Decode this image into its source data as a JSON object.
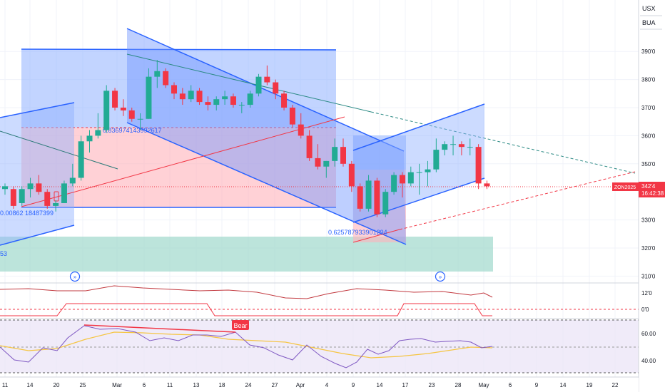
{
  "header": {
    "symbol": "USX",
    "unit": "BUA"
  },
  "last_price": {
    "symbol": "ZON2025",
    "price": "342'4",
    "countdown": "16:42:38"
  },
  "price_axis": [
    {
      "label": "390'0",
      "value": 390
    },
    {
      "label": "380'0",
      "value": 380
    },
    {
      "label": "370'0",
      "value": 370
    },
    {
      "label": "360'0",
      "value": 360
    },
    {
      "label": "350'0",
      "value": 350
    },
    {
      "label": "330'0",
      "value": 330
    },
    {
      "label": "320'0",
      "value": 320
    },
    {
      "label": "310'0",
      "value": 310
    }
  ],
  "indicator_axis": [
    "12'0",
    "0'0"
  ],
  "rsi_axis": [
    "60.00",
    "40.00"
  ],
  "time_axis": [
    "11",
    "14",
    "20",
    "25",
    "Mar",
    "6",
    "11",
    "13",
    "18",
    "24",
    "27",
    "Apr",
    "4",
    "9",
    "14",
    "17",
    "23",
    "28",
    "May",
    "6",
    "9",
    "14",
    "19",
    "22"
  ],
  "annotations": {
    "fib_left": "0.00862",
    "fib_left_b": "18487399",
    "fib_top": "0.836974143992617",
    "fib_bottom": "0.625787933901294",
    "left_value": "53",
    "divergence": "Bear"
  },
  "colors": {
    "up": "#22ab94",
    "down": "#f23645",
    "channel": "#2962ff",
    "fill_blue": "#8fb0ff",
    "fill_red": "#ffb3ba",
    "zone": "#9fd9cc",
    "indicator": "#c2393f",
    "rsi": "#7e57c2",
    "rsi_ma": "#f5c542"
  },
  "chart_data": {
    "type": "candlestick",
    "dates": [
      "Feb 10",
      "Feb 11",
      "Feb 12",
      "Feb 13",
      "Feb 14",
      "Feb 18",
      "Feb 19",
      "Feb 20",
      "Feb 21",
      "Feb 24",
      "Feb 25",
      "Feb 26",
      "Feb 27",
      "Feb 28",
      "Mar 3",
      "Mar 4",
      "Mar 5",
      "Mar 6",
      "Mar 7",
      "Mar 10",
      "Mar 11",
      "Mar 12",
      "Mar 13",
      "Mar 14",
      "Mar 17",
      "Mar 18",
      "Mar 19",
      "Mar 20",
      "Mar 21",
      "Mar 24",
      "Mar 25",
      "Mar 26",
      "Mar 27",
      "Mar 28",
      "Mar 31",
      "Apr 1",
      "Apr 2",
      "Apr 3",
      "Apr 4",
      "Apr 7",
      "Apr 8",
      "Apr 9",
      "Apr 10",
      "Apr 11",
      "Apr 14",
      "Apr 15",
      "Apr 16",
      "Apr 17",
      "Apr 21",
      "Apr 22",
      "Apr 23",
      "Apr 24",
      "Apr 25",
      "Apr 28",
      "Apr 29",
      "Apr 30",
      "May 1",
      "May 2"
    ],
    "ohlc": [
      [
        341,
        343,
        339,
        342
      ],
      [
        341,
        342,
        334,
        335
      ],
      [
        336,
        342,
        335,
        341
      ],
      [
        341,
        345,
        338,
        343
      ],
      [
        343,
        346,
        339,
        340
      ],
      [
        340,
        341,
        334,
        335
      ],
      [
        335,
        337,
        333,
        336
      ],
      [
        336,
        344,
        336,
        343
      ],
      [
        343,
        350,
        342,
        345
      ],
      [
        345,
        360,
        344,
        358
      ],
      [
        358,
        362,
        354,
        360
      ],
      [
        360,
        368,
        359,
        362
      ],
      [
        362,
        378,
        361,
        376
      ],
      [
        376,
        377,
        369,
        370
      ],
      [
        370,
        373,
        367,
        369
      ],
      [
        369,
        370,
        365,
        366
      ],
      [
        366,
        368,
        362,
        366
      ],
      [
        366,
        384,
        366,
        381
      ],
      [
        381,
        387,
        377,
        383
      ],
      [
        383,
        384,
        377,
        378
      ],
      [
        378,
        379,
        373,
        375
      ],
      [
        375,
        377,
        371,
        373
      ],
      [
        373,
        378,
        372,
        376
      ],
      [
        376,
        377,
        371,
        372
      ],
      [
        372,
        374,
        369,
        371
      ],
      [
        371,
        374,
        369,
        373
      ],
      [
        373,
        376,
        371,
        374
      ],
      [
        374,
        375,
        370,
        371
      ],
      [
        371,
        372,
        368,
        371
      ],
      [
        371,
        376,
        370,
        375
      ],
      [
        375,
        382,
        374,
        381
      ],
      [
        381,
        385,
        378,
        379
      ],
      [
        379,
        380,
        373,
        375
      ],
      [
        375,
        376,
        369,
        370
      ],
      [
        370,
        371,
        363,
        364
      ],
      [
        364,
        368,
        359,
        360
      ],
      [
        360,
        362,
        351,
        352
      ],
      [
        352,
        357,
        348,
        349
      ],
      [
        349,
        351,
        345,
        351
      ],
      [
        351,
        359,
        349,
        356
      ],
      [
        356,
        359,
        349,
        350
      ],
      [
        350,
        351,
        340,
        342
      ],
      [
        342,
        343,
        333,
        334
      ],
      [
        334,
        346,
        333,
        344
      ],
      [
        344,
        345,
        331,
        332
      ],
      [
        332,
        341,
        331,
        340
      ],
      [
        340,
        347,
        339,
        346
      ],
      [
        346,
        347,
        338,
        343
      ],
      [
        343,
        349,
        342,
        347
      ],
      [
        347,
        350,
        339,
        347
      ],
      [
        347,
        351,
        342,
        348
      ],
      [
        348,
        359,
        347,
        355
      ],
      [
        355,
        358,
        353,
        357
      ],
      [
        357,
        360,
        353,
        357
      ],
      [
        357,
        358,
        353,
        356
      ],
      [
        356,
        359,
        353,
        356
      ],
      [
        356,
        357,
        341,
        343
      ],
      [
        343,
        344,
        341,
        342
      ]
    ]
  }
}
